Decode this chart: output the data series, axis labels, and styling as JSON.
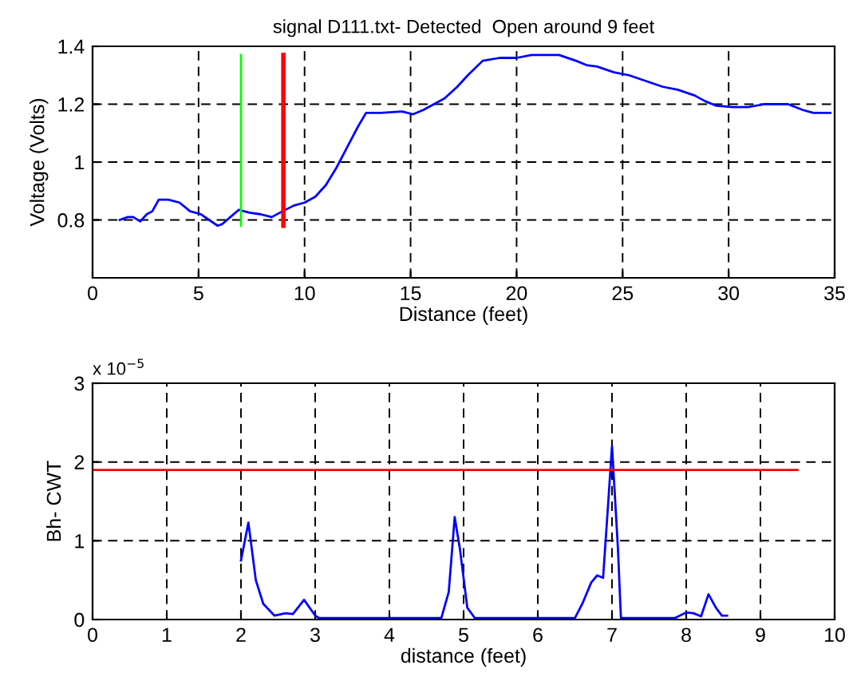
{
  "chart_data": [
    {
      "type": "line",
      "title": "signal D111.txt- Detected  Open around 9 feet",
      "xlabel": "Distance (feet)",
      "ylabel": "Voltage (Volts)",
      "xlim": [
        0,
        35
      ],
      "xticks": [
        0,
        5,
        10,
        15,
        20,
        25,
        30,
        35
      ],
      "ylim": [
        0.6,
        1.4
      ],
      "yticks": [
        0.8,
        1,
        1.2,
        1.4
      ],
      "grid": true,
      "series": [
        {
          "color": "#0000ff",
          "x": [
            1.28,
            1.66,
            1.92,
            2.25,
            2.56,
            2.82,
            3.12,
            3.58,
            4.1,
            4.6,
            5.1,
            5.5,
            5.9,
            6.1,
            6.5,
            6.9,
            7.4,
            7.9,
            8.45,
            8.96,
            9.5,
            10,
            10.5,
            11,
            11.5,
            12,
            12.5,
            12.9,
            13.6,
            14.6,
            15.1,
            15.6,
            16.1,
            16.6,
            17.2,
            17.7,
            18.4,
            19.2,
            20,
            20.7,
            21.2,
            22,
            22.8,
            23.3,
            23.8,
            24.6,
            25.3,
            26.1,
            26.9,
            27.6,
            28.4,
            28.9,
            29.4,
            30.2,
            30.9,
            31.7,
            32.8,
            33.5,
            34,
            34.8
          ],
          "values": [
            0.8,
            0.81,
            0.81,
            0.795,
            0.82,
            0.83,
            0.87,
            0.87,
            0.86,
            0.83,
            0.82,
            0.8,
            0.78,
            0.785,
            0.81,
            0.835,
            0.825,
            0.82,
            0.81,
            0.83,
            0.85,
            0.86,
            0.88,
            0.92,
            0.98,
            1.05,
            1.12,
            1.17,
            1.17,
            1.175,
            1.165,
            1.18,
            1.2,
            1.22,
            1.26,
            1.3,
            1.35,
            1.36,
            1.36,
            1.37,
            1.37,
            1.37,
            1.35,
            1.335,
            1.33,
            1.31,
            1.3,
            1.28,
            1.26,
            1.25,
            1.23,
            1.21,
            1.195,
            1.19,
            1.19,
            1.2,
            1.2,
            1.18,
            1.17,
            1.17
          ]
        },
        {
          "color": "#00ff00",
          "x": [
            7,
            7
          ],
          "values": [
            0.78,
            1.37
          ]
        },
        {
          "color": "#ff0000",
          "x": [
            9,
            9
          ],
          "values": [
            0.78,
            1.37
          ]
        }
      ]
    },
    {
      "type": "line",
      "xlabel": "distance (feet)",
      "ylabel": "Bh- CWT",
      "xlim": [
        0,
        10
      ],
      "xticks": [
        0,
        1,
        2,
        3,
        4,
        5,
        6,
        7,
        8,
        9,
        10
      ],
      "ylim": [
        0,
        3
      ],
      "yticks": [
        0,
        1,
        2,
        3
      ],
      "grid": true,
      "annotations": [
        "x 10$^{−5}$"
      ],
      "series": [
        {
          "color": "#0000ff",
          "x": [
            2.0,
            2.1,
            2.2,
            2.3,
            2.45,
            2.6,
            2.7,
            2.85,
            3.0,
            3.05,
            4.7,
            4.8,
            4.88,
            4.95,
            5.05,
            5.15,
            6.5,
            6.6,
            6.72,
            6.8,
            6.88,
            6.95,
            7.0,
            7.08,
            7.12,
            7.85,
            8.0,
            8.1,
            8.2,
            8.3,
            8.4,
            8.48,
            8.55
          ],
          "values": [
            0.75,
            1.23,
            0.5,
            0.2,
            0.05,
            0.08,
            0.07,
            0.25,
            0.05,
            0.02,
            0.02,
            0.35,
            1.3,
            0.9,
            0.15,
            0.02,
            0.02,
            0.2,
            0.47,
            0.56,
            0.53,
            1.5,
            2.2,
            0.9,
            0.02,
            0.02,
            0.09,
            0.08,
            0.04,
            0.32,
            0.15,
            0.05,
            0.05
          ]
        },
        {
          "color": "#ff0000",
          "x": [
            0,
            9.5
          ],
          "values": [
            1.9,
            1.9
          ]
        }
      ]
    }
  ]
}
